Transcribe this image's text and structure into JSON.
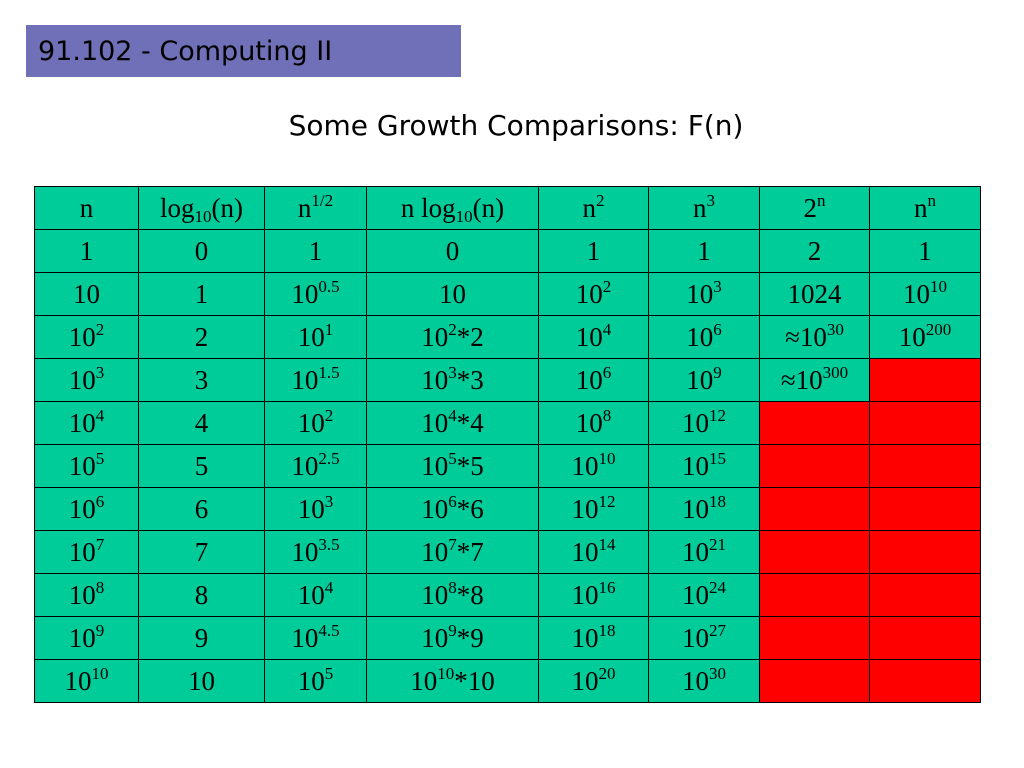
{
  "header": {
    "course": "91.102 - Computing II"
  },
  "title": "Some Growth Comparisons: F(n)",
  "colors": {
    "banner": "#7070b8",
    "cell": "#00cc99",
    "overflow": "#ff0000"
  },
  "table": {
    "headers": [
      {
        "base": "n",
        "sub": "",
        "sup": "",
        "rest": ""
      },
      {
        "base": "log",
        "sub": "10",
        "sup": "",
        "rest": "(n)"
      },
      {
        "base": "n",
        "sub": "",
        "sup": "1/2",
        "rest": ""
      },
      {
        "base": "n log",
        "sub": "10",
        "sup": "",
        "rest": "(n)"
      },
      {
        "base": "n",
        "sub": "",
        "sup": "2",
        "rest": ""
      },
      {
        "base": "n",
        "sub": "",
        "sup": "3",
        "rest": ""
      },
      {
        "base": "2",
        "sub": "",
        "sup": "n",
        "rest": ""
      },
      {
        "base": "n",
        "sub": "",
        "sup": "n",
        "rest": ""
      }
    ],
    "rows": [
      [
        {
          "b": "1",
          "p": "",
          "r": ""
        },
        {
          "b": "0",
          "p": "",
          "r": ""
        },
        {
          "b": "1",
          "p": "",
          "r": ""
        },
        {
          "b": "0",
          "p": "",
          "r": ""
        },
        {
          "b": "1",
          "p": "",
          "r": ""
        },
        {
          "b": "1",
          "p": "",
          "r": ""
        },
        {
          "b": "2",
          "p": "",
          "r": ""
        },
        {
          "b": "1",
          "p": "",
          "r": ""
        }
      ],
      [
        {
          "b": "10",
          "p": "",
          "r": ""
        },
        {
          "b": "1",
          "p": "",
          "r": ""
        },
        {
          "b": "10",
          "p": "0.5",
          "r": ""
        },
        {
          "b": "10",
          "p": "",
          "r": ""
        },
        {
          "b": "10",
          "p": "2",
          "r": ""
        },
        {
          "b": "10",
          "p": "3",
          "r": ""
        },
        {
          "b": "1024",
          "p": "",
          "r": ""
        },
        {
          "b": "10",
          "p": "10",
          "r": ""
        }
      ],
      [
        {
          "b": "10",
          "p": "2",
          "r": ""
        },
        {
          "b": "2",
          "p": "",
          "r": ""
        },
        {
          "b": "10",
          "p": "1",
          "r": ""
        },
        {
          "b": "10",
          "p": "2",
          "r": "*2"
        },
        {
          "b": "10",
          "p": "4",
          "r": ""
        },
        {
          "b": "10",
          "p": "6",
          "r": ""
        },
        {
          "b": "≈10",
          "p": "30",
          "r": ""
        },
        {
          "b": "10",
          "p": "200",
          "r": ""
        }
      ],
      [
        {
          "b": "10",
          "p": "3",
          "r": ""
        },
        {
          "b": "3",
          "p": "",
          "r": ""
        },
        {
          "b": "10",
          "p": "1.5",
          "r": ""
        },
        {
          "b": "10",
          "p": "3",
          "r": "*3"
        },
        {
          "b": "10",
          "p": "6",
          "r": ""
        },
        {
          "b": "10",
          "p": "9",
          "r": ""
        },
        {
          "b": "≈10",
          "p": "300",
          "r": ""
        },
        null
      ],
      [
        {
          "b": "10",
          "p": "4",
          "r": ""
        },
        {
          "b": "4",
          "p": "",
          "r": ""
        },
        {
          "b": "10",
          "p": "2",
          "r": ""
        },
        {
          "b": "10",
          "p": "4",
          "r": "*4"
        },
        {
          "b": "10",
          "p": "8",
          "r": ""
        },
        {
          "b": "10",
          "p": "12",
          "r": ""
        },
        null,
        null
      ],
      [
        {
          "b": "10",
          "p": "5",
          "r": ""
        },
        {
          "b": "5",
          "p": "",
          "r": ""
        },
        {
          "b": "10",
          "p": "2.5",
          "r": ""
        },
        {
          "b": "10",
          "p": "5",
          "r": "*5"
        },
        {
          "b": "10",
          "p": "10",
          "r": ""
        },
        {
          "b": "10",
          "p": "15",
          "r": ""
        },
        null,
        null
      ],
      [
        {
          "b": "10",
          "p": "6",
          "r": ""
        },
        {
          "b": "6",
          "p": "",
          "r": ""
        },
        {
          "b": "10",
          "p": "3",
          "r": ""
        },
        {
          "b": "10",
          "p": "6",
          "r": "*6"
        },
        {
          "b": "10",
          "p": "12",
          "r": ""
        },
        {
          "b": "10",
          "p": "18",
          "r": ""
        },
        null,
        null
      ],
      [
        {
          "b": "10",
          "p": "7",
          "r": ""
        },
        {
          "b": "7",
          "p": "",
          "r": ""
        },
        {
          "b": "10",
          "p": "3.5",
          "r": ""
        },
        {
          "b": "10",
          "p": "7",
          "r": "*7"
        },
        {
          "b": "10",
          "p": "14",
          "r": ""
        },
        {
          "b": "10",
          "p": "21",
          "r": ""
        },
        null,
        null
      ],
      [
        {
          "b": "10",
          "p": "8",
          "r": ""
        },
        {
          "b": "8",
          "p": "",
          "r": ""
        },
        {
          "b": "10",
          "p": "4",
          "r": ""
        },
        {
          "b": "10",
          "p": "8",
          "r": "*8"
        },
        {
          "b": "10",
          "p": "16",
          "r": ""
        },
        {
          "b": "10",
          "p": "24",
          "r": ""
        },
        null,
        null
      ],
      [
        {
          "b": "10",
          "p": "9",
          "r": ""
        },
        {
          "b": "9",
          "p": "",
          "r": ""
        },
        {
          "b": "10",
          "p": "4.5",
          "r": ""
        },
        {
          "b": "10",
          "p": "9",
          "r": "*9"
        },
        {
          "b": "10",
          "p": "18",
          "r": ""
        },
        {
          "b": "10",
          "p": "27",
          "r": ""
        },
        null,
        null
      ],
      [
        {
          "b": "10",
          "p": "10",
          "r": ""
        },
        {
          "b": "10",
          "p": "",
          "r": ""
        },
        {
          "b": "10",
          "p": "5",
          "r": ""
        },
        {
          "b": "10",
          "p": "10",
          "r": "*10"
        },
        {
          "b": "10",
          "p": "20",
          "r": ""
        },
        {
          "b": "10",
          "p": "30",
          "r": ""
        },
        null,
        null
      ]
    ]
  }
}
